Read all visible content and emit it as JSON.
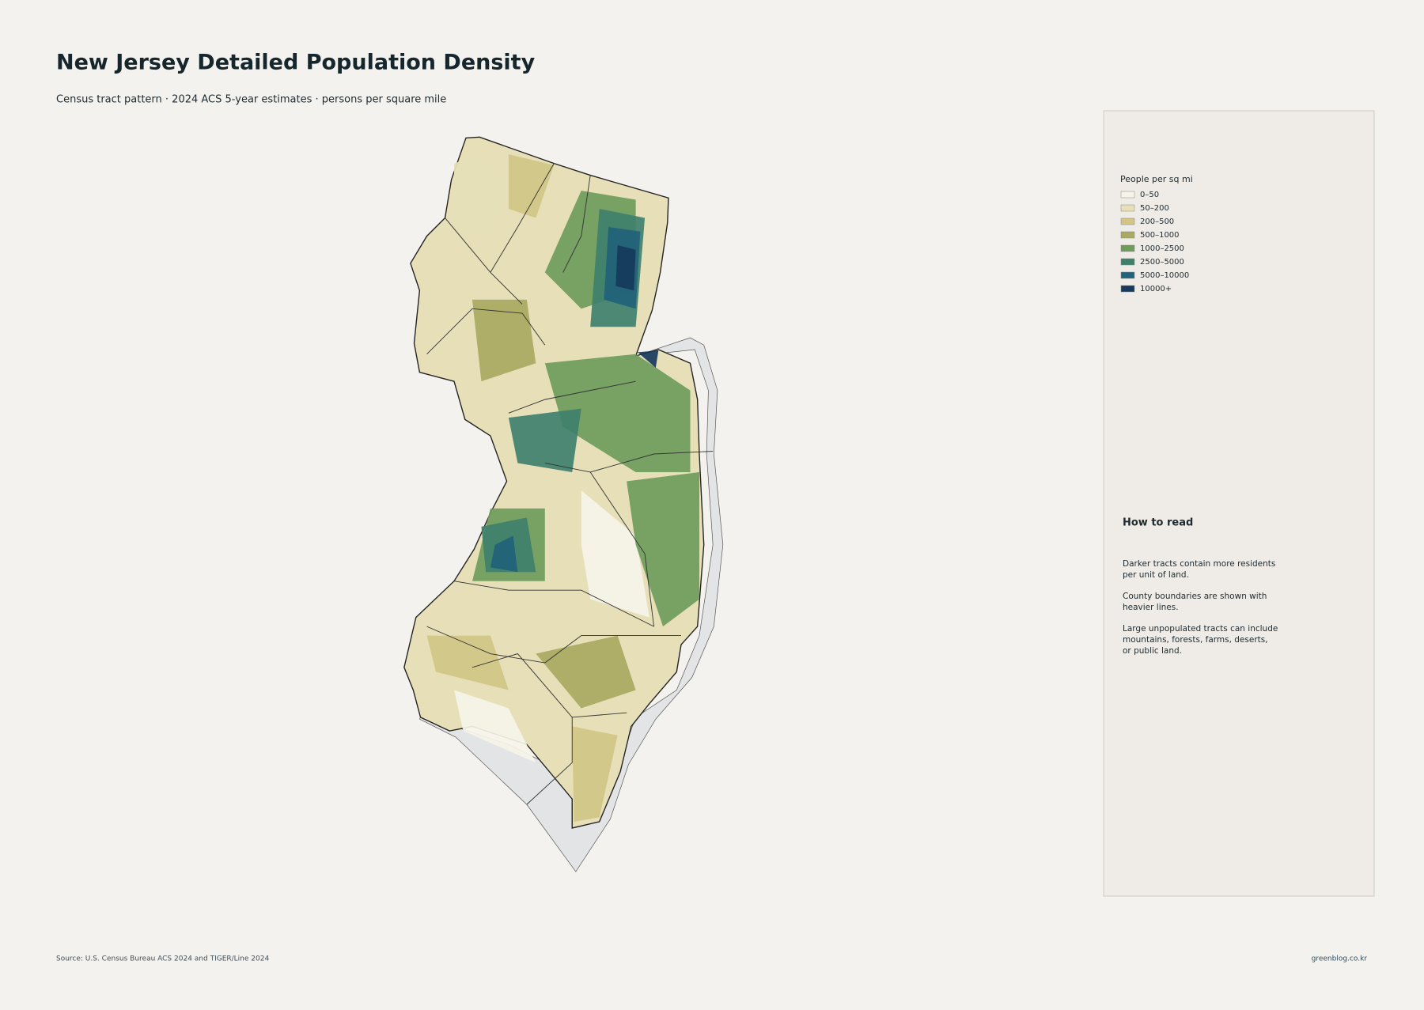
{
  "header": {
    "title": "New Jersey Detailed Population Density",
    "subtitle": "Census tract pattern · 2024 ACS 5-year estimates · persons per square mile"
  },
  "legend": {
    "title": "People per sq mi",
    "items": [
      {
        "label": "0–50",
        "color": "#f6f4e8"
      },
      {
        "label": "50–200",
        "color": "#e6dfb8"
      },
      {
        "label": "200–500",
        "color": "#d0c585"
      },
      {
        "label": "500–1000",
        "color": "#aaa961"
      },
      {
        "label": "1000–2500",
        "color": "#6f9b5c"
      },
      {
        "label": "2500–5000",
        "color": "#3f806c"
      },
      {
        "label": "5000–10000",
        "color": "#22627a"
      },
      {
        "label": "10000+",
        "color": "#173a5c"
      }
    ]
  },
  "how_to_read": {
    "heading": "How to read",
    "paragraphs": [
      [
        "Darker tracts contain more residents",
        "per unit of land."
      ],
      [
        "County boundaries are shown with",
        "heavier lines."
      ],
      [
        "Large unpopulated tracts can include",
        "mountains, forests, farms, deserts,",
        "or public land."
      ]
    ]
  },
  "footer": {
    "source": "Source: U.S. Census Bureau ACS 2024 and TIGER/Line 2024",
    "credit": "greenblog.co.kr"
  }
}
